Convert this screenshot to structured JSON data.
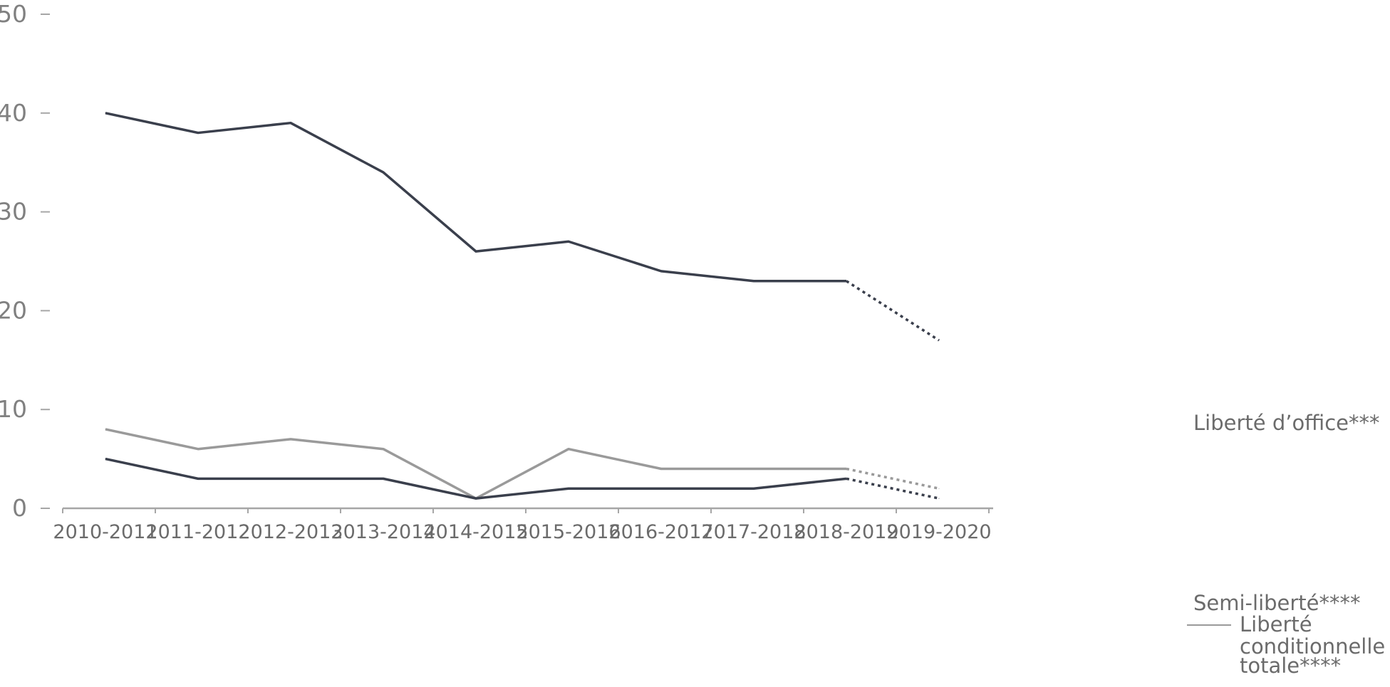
{
  "chart_data": {
    "type": "line",
    "title": "",
    "xlabel": "",
    "ylabel": "",
    "ylim": [
      0,
      50
    ],
    "yticks": [
      0,
      10,
      20,
      30,
      40,
      50
    ],
    "grid": false,
    "legend": "none (direct end-of-line labels)",
    "categories": [
      "2010-2011",
      "2011-2012",
      "2012-2013",
      "2013-2014",
      "2014-2015",
      "2015-2016",
      "2016-2017",
      "2017-2018",
      "2018-2019",
      "2019-2020"
    ],
    "series": [
      {
        "name": "Liberté d’office***",
        "color": "#3a3f4c",
        "values": [
          40,
          38,
          39,
          34,
          26,
          27,
          24,
          23,
          23,
          17
        ],
        "dashed_from_index": 8
      },
      {
        "name": "Semi-liberté****",
        "color": "#9a9a9a",
        "values": [
          8,
          6,
          7,
          6,
          1,
          6,
          4,
          4,
          4,
          2
        ],
        "dashed_from_index": 8
      },
      {
        "name": "Liberté conditionnelle totale****",
        "name_lines": [
          "Liberté",
          "conditionnelle",
          "totale****"
        ],
        "color": "#3a3f4c",
        "values": [
          5,
          3,
          3,
          3,
          1,
          2,
          2,
          2,
          3,
          1
        ],
        "dashed_from_index": 8
      }
    ]
  },
  "colors": {
    "axis": "#a6a6a6",
    "tick_text": "#808080",
    "label_text": "#6b6b6b"
  }
}
